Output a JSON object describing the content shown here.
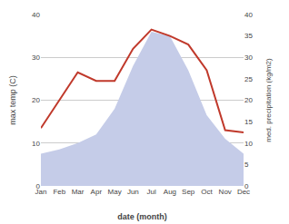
{
  "chart_data": {
    "type": "line",
    "categories": [
      "Jan",
      "Feb",
      "Mar",
      "Apr",
      "May",
      "Jun",
      "Jul",
      "Aug",
      "Sep",
      "Oct",
      "Nov",
      "Dec"
    ],
    "series": [
      {
        "type": "area",
        "axis": "y2",
        "color": "#c5cce8",
        "values": [
          7.5,
          8.5,
          10.0,
          12.0,
          18.0,
          28.0,
          36.0,
          35.0,
          27.0,
          16.5,
          11.0,
          7.5
        ]
      },
      {
        "type": "line",
        "color": "#c0392b",
        "values": [
          13.5,
          20.0,
          26.5,
          24.5,
          24.5,
          32.0,
          36.5,
          35.0,
          33.0,
          27.0,
          13.0,
          12.5
        ]
      }
    ],
    "xlabel": "date (month)",
    "ylabel": "max temp (C)",
    "y2label": "med. precipitation (kg/m2)",
    "ylim": [
      0,
      40
    ],
    "yticks": [
      0,
      10,
      20,
      30,
      40
    ],
    "y2lim": [
      0,
      40
    ],
    "y2ticks": [
      0,
      5,
      10,
      15,
      20,
      25,
      30,
      35,
      40
    ],
    "grid": true
  }
}
